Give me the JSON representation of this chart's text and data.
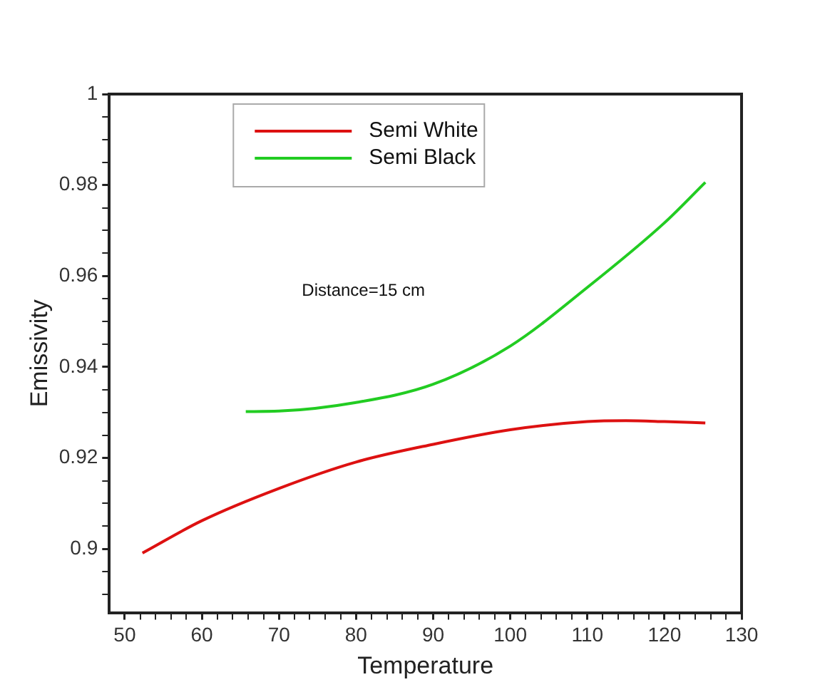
{
  "chart_data": {
    "type": "line",
    "xlabel": "Temperature",
    "ylabel": "Emissivity",
    "annotations": [
      "Distance=15 cm"
    ],
    "xlim": [
      48,
      130
    ],
    "xticks": [
      50,
      {
        "value": 52,
        "label": null
      },
      {
        "value": 54,
        "label": null
      },
      {
        "value": 56,
        "label": null
      },
      {
        "value": 58,
        "label": null
      },
      60,
      {
        "value": 62,
        "label": null
      },
      {
        "value": 64,
        "label": null
      },
      {
        "value": 66,
        "label": null
      },
      {
        "value": 68,
        "label": null
      },
      70,
      {
        "value": 72,
        "label": null
      },
      {
        "value": 74,
        "label": null
      },
      {
        "value": 76,
        "label": null
      },
      {
        "value": 78,
        "label": null
      },
      80,
      {
        "value": 82,
        "label": null
      },
      {
        "value": 84,
        "label": null
      },
      {
        "value": 86,
        "label": null
      },
      {
        "value": 88,
        "label": null
      },
      90,
      {
        "value": 92,
        "label": null
      },
      {
        "value": 94,
        "label": null
      },
      {
        "value": 96,
        "label": null
      },
      {
        "value": 98,
        "label": null
      },
      100,
      {
        "value": 102,
        "label": null
      },
      {
        "value": 104,
        "label": null
      },
      {
        "value": 106,
        "label": null
      },
      {
        "value": 108,
        "label": null
      },
      110,
      {
        "value": 112,
        "label": null
      },
      {
        "value": 114,
        "label": null
      },
      {
        "value": 116,
        "label": null
      },
      {
        "value": 118,
        "label": null
      },
      120,
      {
        "value": 122,
        "label": null
      },
      {
        "value": 124,
        "label": null
      },
      {
        "value": 126,
        "label": null
      },
      {
        "value": 128,
        "label": null
      },
      130
    ],
    "ylim": [
      0.886,
      1
    ],
    "yticks": [
      {
        "value": 0.89,
        "label": null
      },
      {
        "value": 0.895,
        "label": null
      },
      0.9,
      {
        "value": 0.905,
        "label": null
      },
      {
        "value": 0.91,
        "label": null
      },
      {
        "value": 0.915,
        "label": null
      },
      0.92,
      {
        "value": 0.925,
        "label": null
      },
      {
        "value": 0.93,
        "label": null
      },
      {
        "value": 0.935,
        "label": null
      },
      0.94,
      {
        "value": 0.945,
        "label": null
      },
      {
        "value": 0.95,
        "label": null
      },
      {
        "value": 0.955,
        "label": null
      },
      0.96,
      {
        "value": 0.965,
        "label": null
      },
      {
        "value": 0.97,
        "label": null
      },
      {
        "value": 0.975,
        "label": null
      },
      0.98,
      {
        "value": 0.985,
        "label": null
      },
      {
        "value": 0.99,
        "label": null
      },
      {
        "value": 0.995,
        "label": null
      },
      1
    ],
    "grid": false,
    "legend": "top",
    "marker": "none",
    "line_style": "solid",
    "series": [
      {
        "name": "Semi White",
        "color": "#dd1111",
        "x": [
          52.3,
          60,
          70,
          80,
          90,
          100,
          110,
          115,
          120,
          125.3
        ],
        "values": [
          0.8991,
          0.9062,
          0.9133,
          0.9191,
          0.923,
          0.9262,
          0.928,
          0.9282,
          0.928,
          0.9277
        ]
      },
      {
        "name": "Semi Black",
        "color": "#22cc22",
        "x": [
          65.7,
          70,
          80,
          90,
          100,
          110,
          120,
          125.3
        ],
        "values": [
          0.9302,
          0.9303,
          0.9322,
          0.9362,
          0.9446,
          0.9575,
          0.9717,
          0.9806
        ]
      }
    ]
  }
}
